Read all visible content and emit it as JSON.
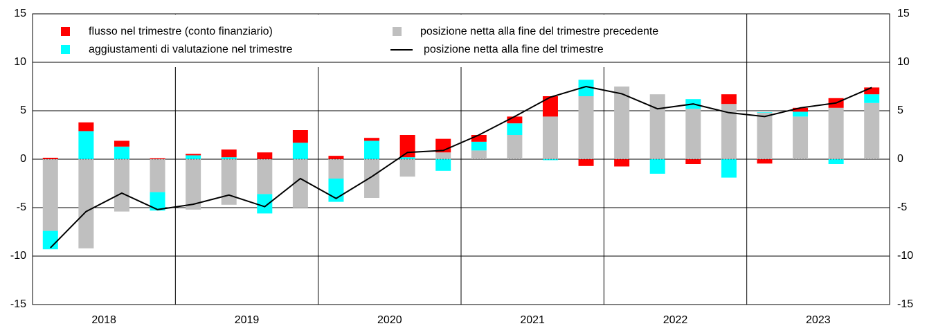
{
  "chart_data": {
    "type": "stacked_bar_line",
    "x_groups": [
      "2018",
      "2019",
      "2020",
      "2021",
      "2022",
      "2023"
    ],
    "categories": [
      null,
      null,
      null,
      null,
      null,
      null,
      null,
      null,
      null,
      null,
      null,
      null,
      null,
      null,
      null,
      null,
      null,
      null,
      null,
      null,
      null,
      null,
      null,
      null
    ],
    "series": [
      {
        "name": "flusso nel trimestre (conto finanziario)",
        "color": "#ff0000",
        "kind": "bar",
        "values": [
          0.15,
          0.9,
          0.6,
          0.1,
          0.15,
          0.8,
          0.7,
          1.3,
          0.35,
          0.3,
          2.3,
          1.4,
          0.7,
          0.7,
          2.1,
          -0.7,
          -0.75,
          0,
          -0.5,
          1.0,
          -0.45,
          0.4,
          1.0,
          0.7
        ]
      },
      {
        "name": "aggiustamenti di valutazione nel trimestre",
        "color": "#00ffff",
        "kind": "bar",
        "values": [
          -1.9,
          2.9,
          1.3,
          -1.9,
          0.4,
          0.2,
          -2.0,
          1.7,
          -2.4,
          1.9,
          0.2,
          -1.2,
          0.9,
          1.2,
          -0.1,
          1.7,
          0,
          -1.5,
          1.0,
          -1.9,
          0.05,
          0.5,
          -0.5,
          0.9
        ]
      },
      {
        "name": "posizione netta alla fine del trimestre precedente",
        "color": "#bfbfbf",
        "kind": "bar",
        "values": [
          -7.4,
          -9.2,
          -5.4,
          -3.4,
          -5.2,
          -4.7,
          -3.6,
          -5.0,
          -2.0,
          -4.0,
          -1.8,
          0.7,
          0.9,
          2.5,
          4.4,
          6.5,
          7.5,
          6.7,
          5.2,
          5.7,
          4.8,
          4.4,
          5.3,
          5.8
        ]
      },
      {
        "name": "posizione netta alla fine del trimestre",
        "color": "#000000",
        "kind": "line",
        "values": [
          -9.15,
          -5.4,
          -3.5,
          -5.2,
          -4.65,
          -3.7,
          -4.9,
          -2.0,
          -4.05,
          -1.8,
          0.7,
          0.9,
          2.5,
          4.4,
          6.4,
          7.5,
          6.75,
          5.2,
          5.7,
          4.8,
          4.4,
          5.3,
          5.8,
          7.4
        ]
      }
    ],
    "ylim": [
      -15,
      15
    ],
    "yticks": [
      -15,
      -10,
      -5,
      0,
      5,
      10,
      15
    ],
    "y2lim": [
      -15,
      15
    ],
    "y2ticks": [
      -15,
      -10,
      -5,
      0,
      5,
      10,
      15
    ],
    "grid": true
  }
}
